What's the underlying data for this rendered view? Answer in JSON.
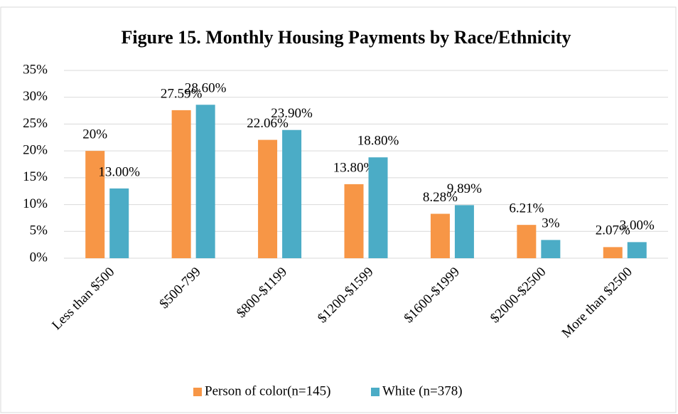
{
  "chart_data": {
    "type": "bar",
    "title": "Figure 15. Monthly Housing Payments by Race/Ethnicity",
    "categories": [
      "Less than $500",
      "$500-799",
      "$800-$1199",
      "$1200-$1599",
      "$1600-$1999",
      "$2000-$2500",
      "More than $2500"
    ],
    "series": [
      {
        "name": "Person of color(n=145)",
        "color": "#f79646",
        "values": [
          20,
          27.59,
          22.06,
          13.8,
          8.28,
          6.21,
          2.07
        ],
        "value_labels": [
          "20%",
          "27.59%",
          "22.06%",
          "13.80%",
          "8.28%",
          "6.21%",
          "2.07%"
        ]
      },
      {
        "name": "White (n=378)",
        "color": "#4bacc6",
        "values": [
          13,
          28.6,
          23.9,
          18.8,
          9.89,
          3.4,
          3
        ],
        "value_labels": [
          "13.00%",
          "28.60%",
          "23.90%",
          "18.80%",
          "9.89%",
          "3%",
          "3.00%"
        ]
      }
    ],
    "ylim": [
      0,
      35
    ],
    "yticks": [
      {
        "value": 0,
        "label": "0%"
      },
      {
        "value": 5,
        "label": "5%"
      },
      {
        "value": 10,
        "label": "10%"
      },
      {
        "value": 15,
        "label": "15%"
      },
      {
        "value": 20,
        "label": "20%"
      },
      {
        "value": 25,
        "label": "25%"
      },
      {
        "value": 30,
        "label": "30%"
      },
      {
        "value": 35,
        "label": "35%"
      }
    ],
    "grid": true,
    "legend": "bottom"
  }
}
